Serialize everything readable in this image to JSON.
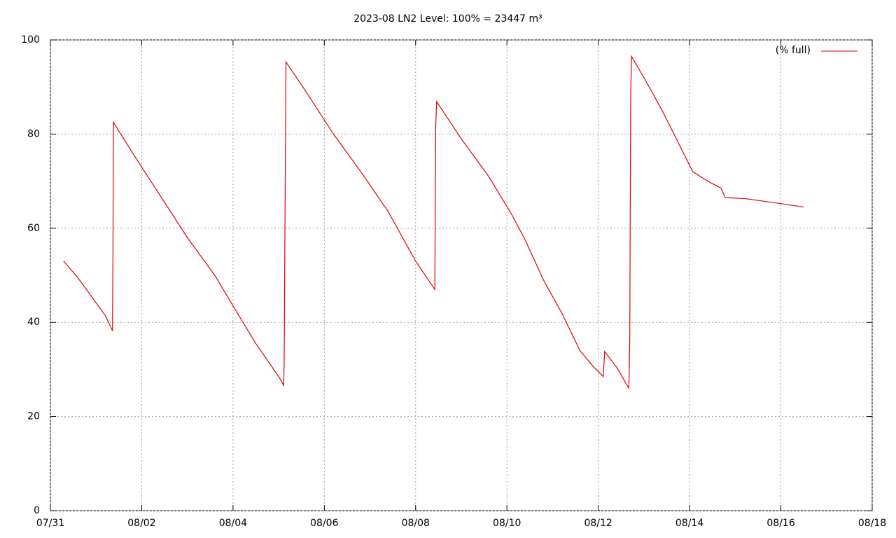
{
  "chart_data": {
    "type": "line",
    "title": "2023-08 LN2 Level: 100% = 23447 m³",
    "xlim": [
      0,
      18
    ],
    "xticks": [
      {
        "value": 0,
        "label": "07/31"
      },
      {
        "value": 2,
        "label": "08/02"
      },
      {
        "value": 4,
        "label": "08/04"
      },
      {
        "value": 6,
        "label": "08/06"
      },
      {
        "value": 8,
        "label": "08/08"
      },
      {
        "value": 10,
        "label": "08/10"
      },
      {
        "value": 12,
        "label": "08/12"
      },
      {
        "value": 14,
        "label": "08/14"
      },
      {
        "value": 16,
        "label": "08/16"
      },
      {
        "value": 18,
        "label": "08/18"
      }
    ],
    "ylim": [
      0,
      100
    ],
    "yticks": [
      0,
      20,
      40,
      60,
      80,
      100
    ],
    "grid": true,
    "legend": "upper right",
    "x": [
      0.29,
      0.6,
      0.9,
      1.2,
      1.36,
      1.37,
      1.38,
      1.8,
      2.4,
      3,
      3.6,
      4.0,
      4.5,
      5.0,
      5.11,
      5.12,
      5.14,
      5.16,
      5.6,
      6.2,
      6.8,
      7.4,
      8.0,
      8.42,
      8.44,
      8.46,
      9,
      9.6,
      10.1,
      10.4,
      10.8,
      11.2,
      11.6,
      11.9,
      12.11,
      12.14,
      12.4,
      12.67,
      12.69,
      12.71,
      12.73,
      13.0,
      13.4,
      13.71,
      14.07,
      14.4,
      14.69,
      14.78,
      15.2,
      15.8,
      16.5
    ],
    "series": [
      {
        "name": "(% full)",
        "color": "#dd0000",
        "values": [
          53,
          49.5,
          45.5,
          41.5,
          38.2,
          54.5,
          82.5,
          76,
          67,
          58,
          50,
          43.5,
          35.5,
          28.5,
          26.6,
          31.5,
          64,
          95.3,
          89,
          80,
          72,
          63.5,
          53,
          47,
          82,
          86.9,
          79,
          71,
          63,
          57.5,
          49,
          42,
          34,
          30.5,
          28.5,
          33.8,
          30.5,
          26,
          36.5,
          88.5,
          96.5,
          92,
          85,
          79,
          72,
          70,
          68.5,
          66.5,
          66.3,
          65.5,
          64.5
        ]
      }
    ]
  }
}
